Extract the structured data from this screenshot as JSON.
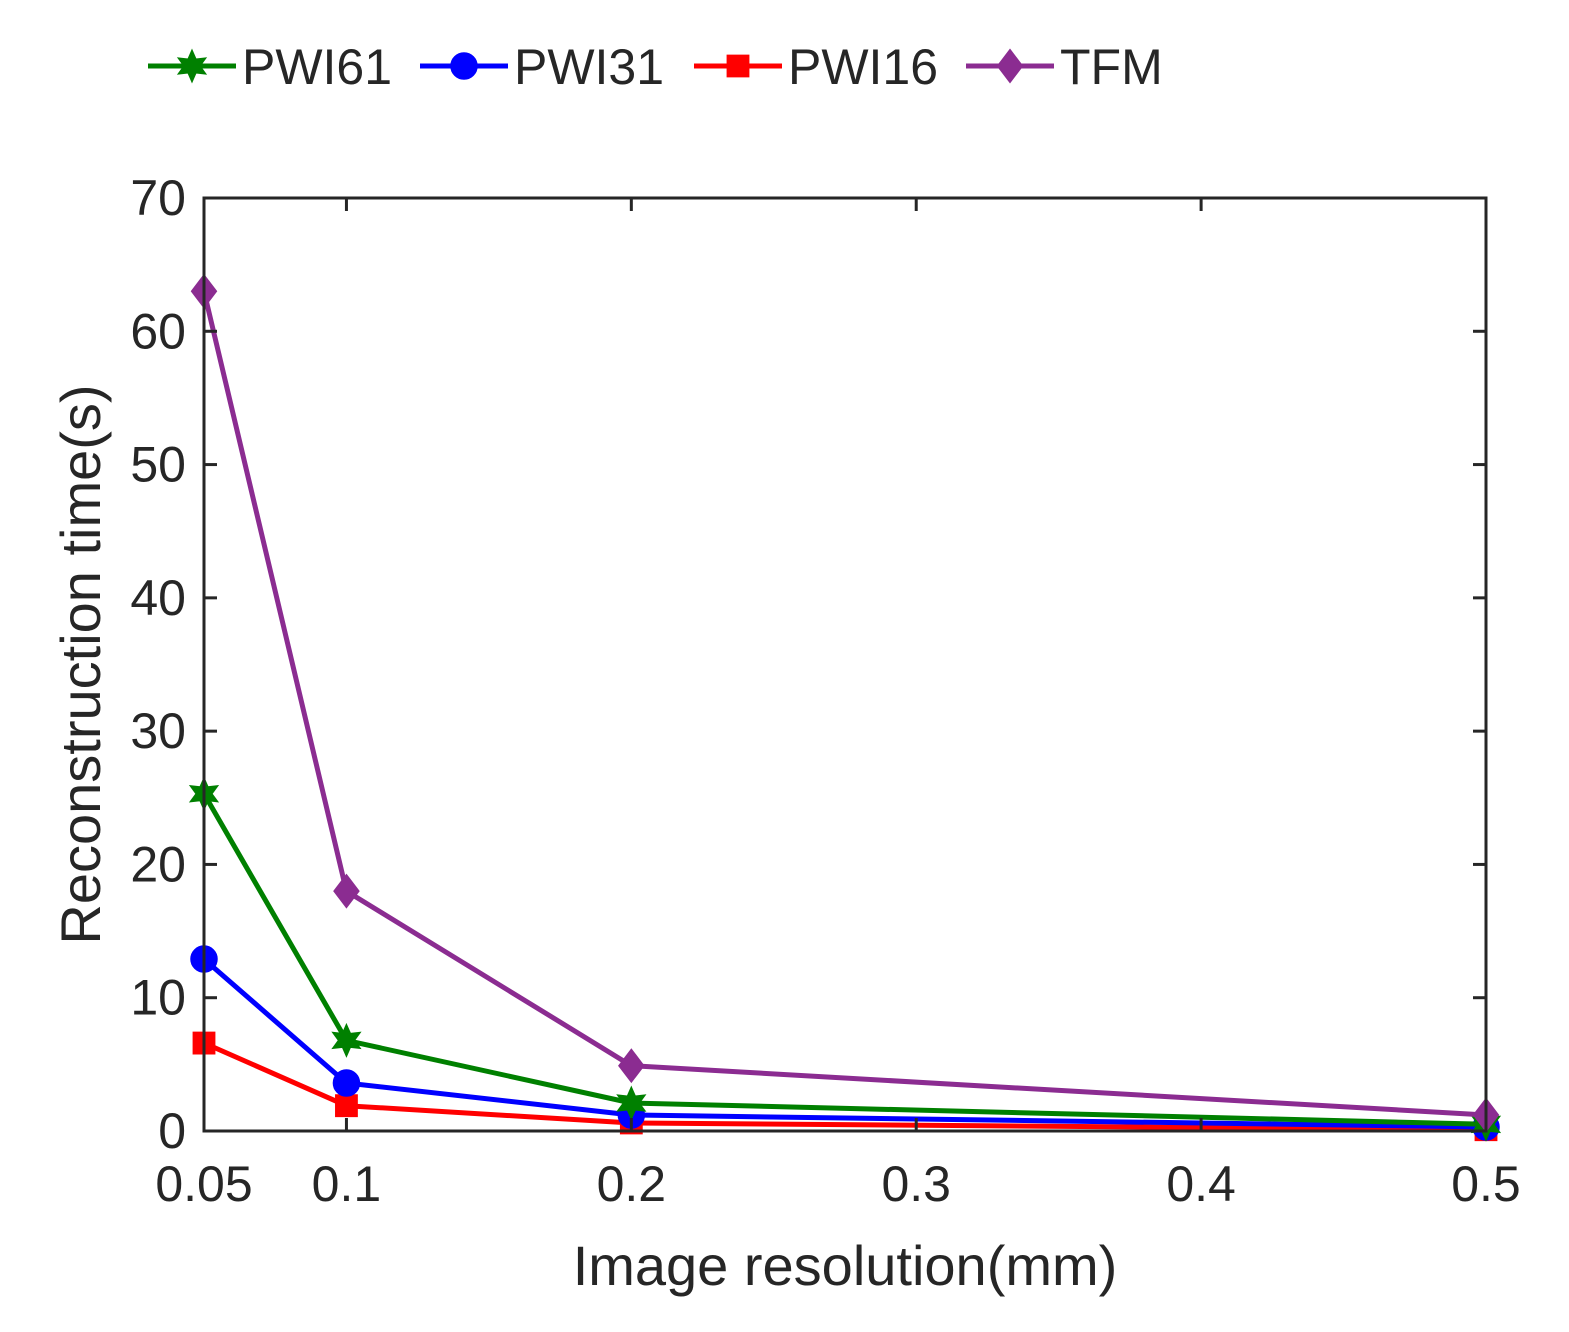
{
  "chart_data": {
    "type": "line",
    "title": "",
    "xlabel": "Image resolution(mm)",
    "ylabel": "Reconstruction time(s)",
    "xlim": [
      0.05,
      0.5
    ],
    "ylim": [
      0,
      70
    ],
    "xticks": [
      0.05,
      0.1,
      0.2,
      0.3,
      0.4,
      0.5
    ],
    "xtick_labels": [
      "0.05",
      "0.1",
      "0.2",
      "0.3",
      "0.4",
      "0.5"
    ],
    "yticks": [
      0,
      10,
      20,
      30,
      40,
      50,
      60,
      70
    ],
    "ytick_labels": [
      "0",
      "10",
      "20",
      "30",
      "40",
      "50",
      "60",
      "70"
    ],
    "grid": false,
    "legend_position": "top-outside",
    "x": [
      0.05,
      0.1,
      0.2,
      0.5
    ],
    "series": [
      {
        "name": "PWI61",
        "color": "#008000",
        "marker": "star",
        "values": [
          25.3,
          6.8,
          2.1,
          0.5
        ]
      },
      {
        "name": "PWI31",
        "color": "#0000ff",
        "marker": "circle",
        "values": [
          12.9,
          3.6,
          1.2,
          0.3
        ]
      },
      {
        "name": "PWI16",
        "color": "#ff0000",
        "marker": "square",
        "values": [
          6.6,
          1.9,
          0.6,
          0.1
        ]
      },
      {
        "name": "TFM",
        "color": "#8b2c91",
        "marker": "diamond",
        "values": [
          63.0,
          18.0,
          4.9,
          1.2
        ]
      }
    ]
  }
}
